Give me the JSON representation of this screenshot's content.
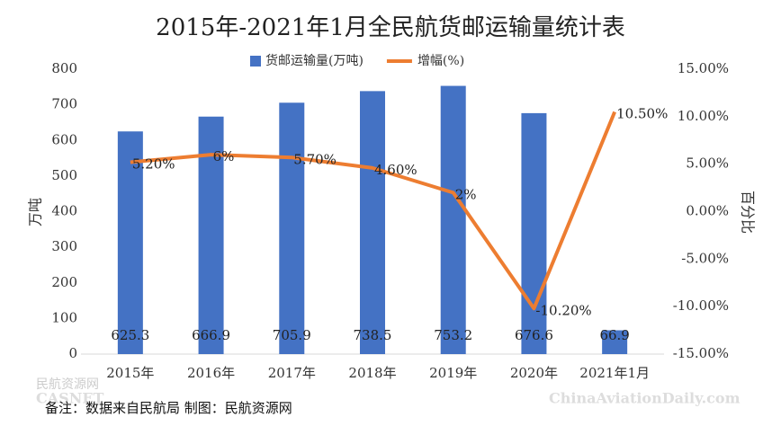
{
  "chart_data": {
    "type": "bar-line",
    "title": "2015年-2021年1月全民航货邮运输量统计表",
    "categories": [
      "2015年",
      "2016年",
      "2017年",
      "2018年",
      "2019年",
      "2020年",
      "2021年1月"
    ],
    "series": [
      {
        "name": "货邮运输量(万吨)",
        "type": "bar",
        "color": "#4472c4",
        "values": [
          625.3,
          666.9,
          705.9,
          738.5,
          753.2,
          676.6,
          66.9
        ]
      },
      {
        "name": "增幅(%)",
        "type": "line",
        "axis": "y2",
        "color": "#ed7d31",
        "values": [
          5.2,
          6,
          5.7,
          4.6,
          2,
          -10.2,
          10.5
        ],
        "value_labels": [
          "5.20%",
          "6%",
          "5.70%",
          "4.60%",
          "2%",
          "-10.20%",
          "10.50%"
        ]
      }
    ],
    "ylabel": "万吨",
    "y2label": "百分比",
    "ylim": [
      0,
      800
    ],
    "yticks": [
      0,
      100,
      200,
      300,
      400,
      500,
      600,
      700,
      800
    ],
    "y2lim": [
      -15,
      15
    ],
    "y2ticks": [
      {
        "value": -15,
        "label": "-15.00%"
      },
      {
        "value": -10,
        "label": "-10.00%"
      },
      {
        "value": -5,
        "label": "-5.00%"
      },
      {
        "value": 0,
        "label": "0.00%"
      },
      {
        "value": 5,
        "label": "5.00%"
      },
      {
        "value": 10,
        "label": "10.00%"
      },
      {
        "value": 15,
        "label": "15.00%"
      }
    ],
    "legend": "top",
    "footnote": "备注：数据来自民航局   制图：民航资源网",
    "watermarks": [
      "民航资源网",
      "CASNET",
      "ChinaAviationDaily.com"
    ]
  }
}
